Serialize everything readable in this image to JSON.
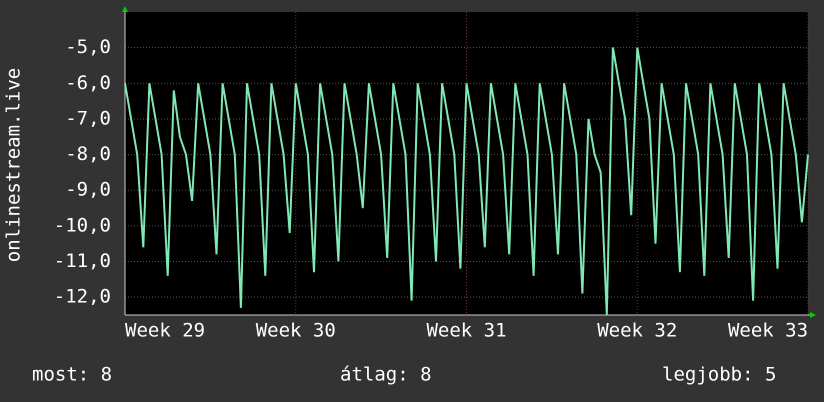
{
  "chart_data": {
    "type": "line",
    "ylabel": "onlinestream.live",
    "xlim": [
      0,
      28
    ],
    "xticks": [
      {
        "value": 0,
        "label": "Week 29"
      },
      {
        "value": 7,
        "label": "Week 30"
      },
      {
        "value": 14,
        "label": "Week 31"
      },
      {
        "value": 21,
        "label": "Week 32"
      },
      {
        "value": 28,
        "label": "Week 33"
      }
    ],
    "ylim": [
      -12.5,
      -4
    ],
    "yticks": [
      {
        "value": -5,
        "label": "-5,0"
      },
      {
        "value": -6,
        "label": "-6,0"
      },
      {
        "value": -7,
        "label": "-7,0"
      },
      {
        "value": -8,
        "label": "-8,0"
      },
      {
        "value": -9,
        "label": "-9,0"
      },
      {
        "value": -10,
        "label": "-10,0"
      },
      {
        "value": -11,
        "label": "-11,0"
      },
      {
        "value": -12,
        "label": "-12,0"
      }
    ],
    "grid": true,
    "x": [
      0,
      0.25,
      0.5,
      0.75,
      1,
      1.25,
      1.5,
      1.75,
      2,
      2.25,
      2.5,
      2.75,
      3,
      3.25,
      3.5,
      3.75,
      4,
      4.25,
      4.5,
      4.75,
      5,
      5.25,
      5.5,
      5.75,
      6,
      6.25,
      6.5,
      6.75,
      7,
      7.25,
      7.5,
      7.75,
      8,
      8.25,
      8.5,
      8.75,
      9,
      9.25,
      9.5,
      9.75,
      10,
      10.25,
      10.5,
      10.75,
      11,
      11.25,
      11.5,
      11.75,
      12,
      12.25,
      12.5,
      12.75,
      13,
      13.25,
      13.5,
      13.75,
      14,
      14.25,
      14.5,
      14.75,
      15,
      15.25,
      15.5,
      15.75,
      16,
      16.25,
      16.5,
      16.75,
      17,
      17.25,
      17.5,
      17.75,
      18,
      18.25,
      18.5,
      18.75,
      19,
      19.25,
      19.5,
      19.75,
      20,
      20.25,
      20.5,
      20.75,
      21,
      21.25,
      21.5,
      21.75,
      22,
      22.25,
      22.5,
      22.75,
      23,
      23.25,
      23.5,
      23.75,
      24,
      24.25,
      24.5,
      24.75,
      25,
      25.25,
      25.5,
      25.75,
      26,
      26.25,
      26.5,
      26.75,
      27,
      27.25,
      27.5,
      27.75,
      28
    ],
    "series": [
      {
        "color": "#80e8b4",
        "values": [
          -6,
          -7,
          -8,
          -10.6,
          -6,
          -7,
          -8,
          -11.4,
          -6.2,
          -7.5,
          -8,
          -9.3,
          -6,
          -7,
          -8,
          -10.8,
          -6,
          -7,
          -8,
          -12.3,
          -6,
          -7,
          -8,
          -11.4,
          -6,
          -7,
          -8,
          -10.2,
          -6,
          -7,
          -8,
          -11.3,
          -6,
          -7,
          -8,
          -11,
          -6,
          -7,
          -8,
          -9.5,
          -6,
          -7,
          -8,
          -10.9,
          -6,
          -7,
          -8,
          -12.1,
          -6,
          -7,
          -8,
          -11,
          -6,
          -7,
          -8,
          -11.2,
          -6,
          -7,
          -8,
          -10.6,
          -6,
          -7,
          -8,
          -10.8,
          -6,
          -7,
          -8,
          -11.4,
          -6,
          -7,
          -8,
          -10.8,
          -6,
          -7,
          -8,
          -11.9,
          -7,
          -8,
          -8.5,
          -12.5,
          -5,
          -6,
          -7,
          -9.7,
          -5,
          -6,
          -7,
          -10.5,
          -6,
          -7,
          -8,
          -11.3,
          -6,
          -7,
          -8,
          -11.4,
          -6,
          -7,
          -8,
          -10.9,
          -6,
          -7,
          -8,
          -12.1,
          -6,
          -7,
          -8,
          -11.2,
          -6,
          -7,
          -8,
          -9.9,
          -8
        ]
      }
    ],
    "stats": [
      "most: 8",
      "átlag: 8",
      "legjobb: 5"
    ]
  }
}
